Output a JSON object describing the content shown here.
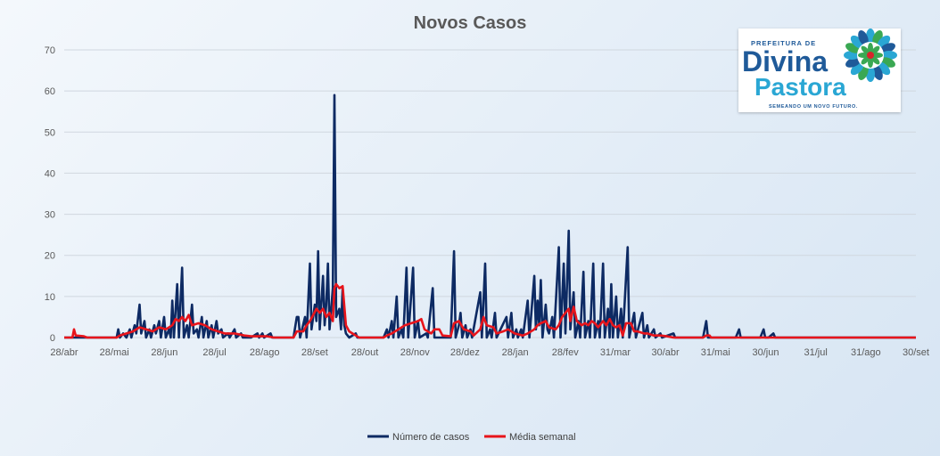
{
  "chart_data": {
    "type": "line",
    "title": "Novos Casos",
    "xlabel": "",
    "ylabel": "",
    "ylim": [
      0,
      70
    ],
    "yticks": [
      0,
      10,
      20,
      30,
      40,
      50,
      60,
      70
    ],
    "x_tick_labels": [
      "28/abr",
      "28/mai",
      "28/jun",
      "28/jul",
      "28/ago",
      "28/set",
      "28/out",
      "28/nov",
      "28/dez",
      "28/jan",
      "28/fev",
      "31/mar",
      "30/abr",
      "31/mai",
      "30/jun",
      "31/jul",
      "31/ago",
      "30/set"
    ],
    "x_range_days": [
      0,
      520
    ],
    "legend_position": "bottom",
    "grid": true,
    "series": [
      {
        "name": "Número de casos",
        "color": "#0d2a63",
        "points": [
          [
            0,
            0
          ],
          [
            5,
            0
          ],
          [
            20,
            0
          ],
          [
            32,
            0
          ],
          [
            33,
            2
          ],
          [
            34,
            0
          ],
          [
            36,
            1
          ],
          [
            38,
            0
          ],
          [
            40,
            2
          ],
          [
            41,
            0
          ],
          [
            43,
            3
          ],
          [
            44,
            1
          ],
          [
            46,
            8
          ],
          [
            47,
            1
          ],
          [
            49,
            4
          ],
          [
            50,
            0
          ],
          [
            52,
            2
          ],
          [
            53,
            0
          ],
          [
            55,
            3
          ],
          [
            56,
            1
          ],
          [
            58,
            4
          ],
          [
            59,
            0
          ],
          [
            61,
            5
          ],
          [
            62,
            0
          ],
          [
            64,
            2
          ],
          [
            65,
            0
          ],
          [
            66,
            9
          ],
          [
            67,
            0
          ],
          [
            69,
            13
          ],
          [
            70,
            0
          ],
          [
            72,
            17
          ],
          [
            73,
            0
          ],
          [
            75,
            3
          ],
          [
            76,
            0
          ],
          [
            78,
            8
          ],
          [
            79,
            1
          ],
          [
            81,
            2
          ],
          [
            82,
            0
          ],
          [
            84,
            5
          ],
          [
            85,
            0
          ],
          [
            87,
            4
          ],
          [
            88,
            0
          ],
          [
            90,
            3
          ],
          [
            91,
            0
          ],
          [
            93,
            4
          ],
          [
            94,
            1
          ],
          [
            96,
            2
          ],
          [
            97,
            0
          ],
          [
            100,
            1
          ],
          [
            101,
            0
          ],
          [
            104,
            2
          ],
          [
            105,
            0
          ],
          [
            108,
            1
          ],
          [
            109,
            0
          ],
          [
            114,
            0
          ],
          [
            118,
            1
          ],
          [
            119,
            0
          ],
          [
            121,
            1
          ],
          [
            122,
            0
          ],
          [
            126,
            1
          ],
          [
            127,
            0
          ],
          [
            140,
            0
          ],
          [
            142,
            5
          ],
          [
            143,
            5
          ],
          [
            144,
            0
          ],
          [
            147,
            5
          ],
          [
            148,
            0
          ],
          [
            150,
            18
          ],
          [
            151,
            2
          ],
          [
            153,
            8
          ],
          [
            154,
            4
          ],
          [
            155,
            21
          ],
          [
            156,
            2
          ],
          [
            158,
            15
          ],
          [
            159,
            3
          ],
          [
            160,
            8
          ],
          [
            161,
            18
          ],
          [
            162,
            2
          ],
          [
            164,
            12
          ],
          [
            165,
            59
          ],
          [
            166,
            5
          ],
          [
            168,
            7
          ],
          [
            169,
            2
          ],
          [
            170,
            12
          ],
          [
            171,
            3
          ],
          [
            172,
            1
          ],
          [
            174,
            0
          ],
          [
            178,
            1
          ],
          [
            179,
            0
          ],
          [
            195,
            0
          ],
          [
            197,
            2
          ],
          [
            198,
            0
          ],
          [
            200,
            4
          ],
          [
            201,
            0
          ],
          [
            203,
            10
          ],
          [
            204,
            0
          ],
          [
            206,
            2
          ],
          [
            207,
            0
          ],
          [
            209,
            17
          ],
          [
            210,
            0
          ],
          [
            213,
            17
          ],
          [
            214,
            0
          ],
          [
            216,
            4
          ],
          [
            217,
            0
          ],
          [
            221,
            1
          ],
          [
            222,
            0
          ],
          [
            225,
            12
          ],
          [
            226,
            0
          ],
          [
            236,
            0
          ],
          [
            238,
            21
          ],
          [
            239,
            0
          ],
          [
            241,
            3
          ],
          [
            242,
            6
          ],
          [
            243,
            0
          ],
          [
            245,
            3
          ],
          [
            246,
            0
          ],
          [
            248,
            2
          ],
          [
            249,
            0
          ],
          [
            254,
            11
          ],
          [
            255,
            0
          ],
          [
            257,
            18
          ],
          [
            258,
            0
          ],
          [
            260,
            2
          ],
          [
            261,
            0
          ],
          [
            263,
            6
          ],
          [
            264,
            0
          ],
          [
            270,
            5
          ],
          [
            271,
            0
          ],
          [
            273,
            6
          ],
          [
            274,
            0
          ],
          [
            276,
            2
          ],
          [
            277,
            0
          ],
          [
            279,
            2
          ],
          [
            280,
            0
          ],
          [
            283,
            9
          ],
          [
            284,
            0
          ],
          [
            287,
            15
          ],
          [
            288,
            2
          ],
          [
            289,
            9
          ],
          [
            290,
            3
          ],
          [
            291,
            14
          ],
          [
            292,
            0
          ],
          [
            294,
            8
          ],
          [
            295,
            2
          ],
          [
            296,
            1
          ],
          [
            298,
            5
          ],
          [
            299,
            0
          ],
          [
            302,
            22
          ],
          [
            303,
            0
          ],
          [
            305,
            18
          ],
          [
            306,
            1
          ],
          [
            308,
            26
          ],
          [
            309,
            2
          ],
          [
            311,
            11
          ],
          [
            312,
            0
          ],
          [
            314,
            4
          ],
          [
            315,
            0
          ],
          [
            317,
            16
          ],
          [
            318,
            0
          ],
          [
            320,
            4
          ],
          [
            321,
            0
          ],
          [
            323,
            18
          ],
          [
            324,
            0
          ],
          [
            326,
            4
          ],
          [
            327,
            0
          ],
          [
            329,
            18
          ],
          [
            330,
            0
          ],
          [
            332,
            7
          ],
          [
            333,
            0
          ],
          [
            334,
            13
          ],
          [
            335,
            0
          ],
          [
            337,
            10
          ],
          [
            338,
            0
          ],
          [
            340,
            7
          ],
          [
            341,
            0
          ],
          [
            344,
            22
          ],
          [
            345,
            0
          ],
          [
            348,
            6
          ],
          [
            349,
            0
          ],
          [
            353,
            6
          ],
          [
            354,
            0
          ],
          [
            356,
            3
          ],
          [
            357,
            0
          ],
          [
            360,
            2
          ],
          [
            361,
            0
          ],
          [
            364,
            1
          ],
          [
            365,
            0
          ],
          [
            372,
            1
          ],
          [
            373,
            0
          ],
          [
            375,
            0
          ],
          [
            390,
            0
          ],
          [
            392,
            4
          ],
          [
            393,
            0
          ],
          [
            395,
            0
          ],
          [
            410,
            0
          ],
          [
            412,
            2
          ],
          [
            413,
            0
          ],
          [
            425,
            0
          ],
          [
            427,
            2
          ],
          [
            428,
            0
          ],
          [
            430,
            0
          ],
          [
            433,
            1
          ],
          [
            434,
            0
          ],
          [
            440,
            0
          ],
          [
            520,
            0
          ]
        ]
      },
      {
        "name": "Média semanal",
        "color": "#e8141b",
        "points": [
          [
            0,
            0
          ],
          [
            5,
            0
          ],
          [
            6,
            2
          ],
          [
            7,
            0.5
          ],
          [
            12,
            0.3
          ],
          [
            14,
            0
          ],
          [
            32,
            0
          ],
          [
            34,
            0.5
          ],
          [
            38,
            1
          ],
          [
            42,
            1.5
          ],
          [
            46,
            2.5
          ],
          [
            50,
            2
          ],
          [
            54,
            1.5
          ],
          [
            58,
            2.5
          ],
          [
            62,
            2
          ],
          [
            66,
            3
          ],
          [
            68,
            4.5
          ],
          [
            70,
            4
          ],
          [
            72,
            5
          ],
          [
            74,
            4
          ],
          [
            76,
            5.5
          ],
          [
            78,
            3
          ],
          [
            82,
            3.5
          ],
          [
            86,
            3
          ],
          [
            90,
            2
          ],
          [
            94,
            1.5
          ],
          [
            98,
            1
          ],
          [
            104,
            1
          ],
          [
            110,
            0.5
          ],
          [
            114,
            0.3
          ],
          [
            124,
            0.3
          ],
          [
            128,
            0
          ],
          [
            140,
            0
          ],
          [
            142,
            1.5
          ],
          [
            146,
            1.5
          ],
          [
            148,
            3
          ],
          [
            150,
            4
          ],
          [
            152,
            5.5
          ],
          [
            154,
            7
          ],
          [
            156,
            6
          ],
          [
            158,
            7
          ],
          [
            160,
            5
          ],
          [
            162,
            6
          ],
          [
            164,
            4
          ],
          [
            165,
            12
          ],
          [
            166,
            13
          ],
          [
            168,
            12
          ],
          [
            170,
            12.5
          ],
          [
            172,
            3
          ],
          [
            174,
            1.5
          ],
          [
            176,
            1
          ],
          [
            178,
            0.5
          ],
          [
            180,
            0
          ],
          [
            195,
            0
          ],
          [
            197,
            0.5
          ],
          [
            200,
            1
          ],
          [
            204,
            2
          ],
          [
            208,
            3
          ],
          [
            212,
            3.5
          ],
          [
            216,
            4
          ],
          [
            218,
            4.5
          ],
          [
            220,
            2
          ],
          [
            224,
            1
          ],
          [
            226,
            2
          ],
          [
            229,
            2
          ],
          [
            231,
            0.5
          ],
          [
            236,
            0.3
          ],
          [
            238,
            3.5
          ],
          [
            241,
            4
          ],
          [
            244,
            2
          ],
          [
            248,
            1.5
          ],
          [
            250,
            0.5
          ],
          [
            254,
            2
          ],
          [
            256,
            5
          ],
          [
            258,
            3
          ],
          [
            262,
            2.5
          ],
          [
            264,
            1
          ],
          [
            268,
            1.5
          ],
          [
            271,
            2
          ],
          [
            275,
            1
          ],
          [
            280,
            0.5
          ],
          [
            283,
            1
          ],
          [
            287,
            2
          ],
          [
            289,
            3
          ],
          [
            291,
            3.5
          ],
          [
            294,
            4
          ],
          [
            296,
            2.5
          ],
          [
            300,
            2
          ],
          [
            302,
            3
          ],
          [
            304,
            5
          ],
          [
            306,
            6
          ],
          [
            308,
            7
          ],
          [
            309,
            4
          ],
          [
            311,
            7.5
          ],
          [
            313,
            4
          ],
          [
            316,
            3
          ],
          [
            318,
            3.5
          ],
          [
            320,
            3
          ],
          [
            322,
            4
          ],
          [
            324,
            3.5
          ],
          [
            326,
            2.5
          ],
          [
            329,
            4
          ],
          [
            331,
            3
          ],
          [
            333,
            4.5
          ],
          [
            335,
            3
          ],
          [
            337,
            2.5
          ],
          [
            339,
            3
          ],
          [
            341,
            0.5
          ],
          [
            343,
            3.5
          ],
          [
            346,
            3.5
          ],
          [
            348,
            1.5
          ],
          [
            350,
            1.5
          ],
          [
            354,
            1
          ],
          [
            356,
            1
          ],
          [
            360,
            0.5
          ],
          [
            364,
            0.5
          ],
          [
            368,
            0.3
          ],
          [
            372,
            0
          ],
          [
            390,
            0
          ],
          [
            392,
            0.5
          ],
          [
            394,
            0.5
          ],
          [
            395,
            0
          ],
          [
            520,
            0
          ]
        ]
      }
    ]
  },
  "logo": {
    "top_text": "PREFEITURA DE",
    "line1": "Divina",
    "line2": "Pastora",
    "slogan": "SEMEANDO UM NOVO FUTURO.",
    "colors": {
      "blue": "#1f5a99",
      "teal": "#2aa7d4",
      "green": "#3aa853",
      "red": "#d8242b"
    }
  }
}
